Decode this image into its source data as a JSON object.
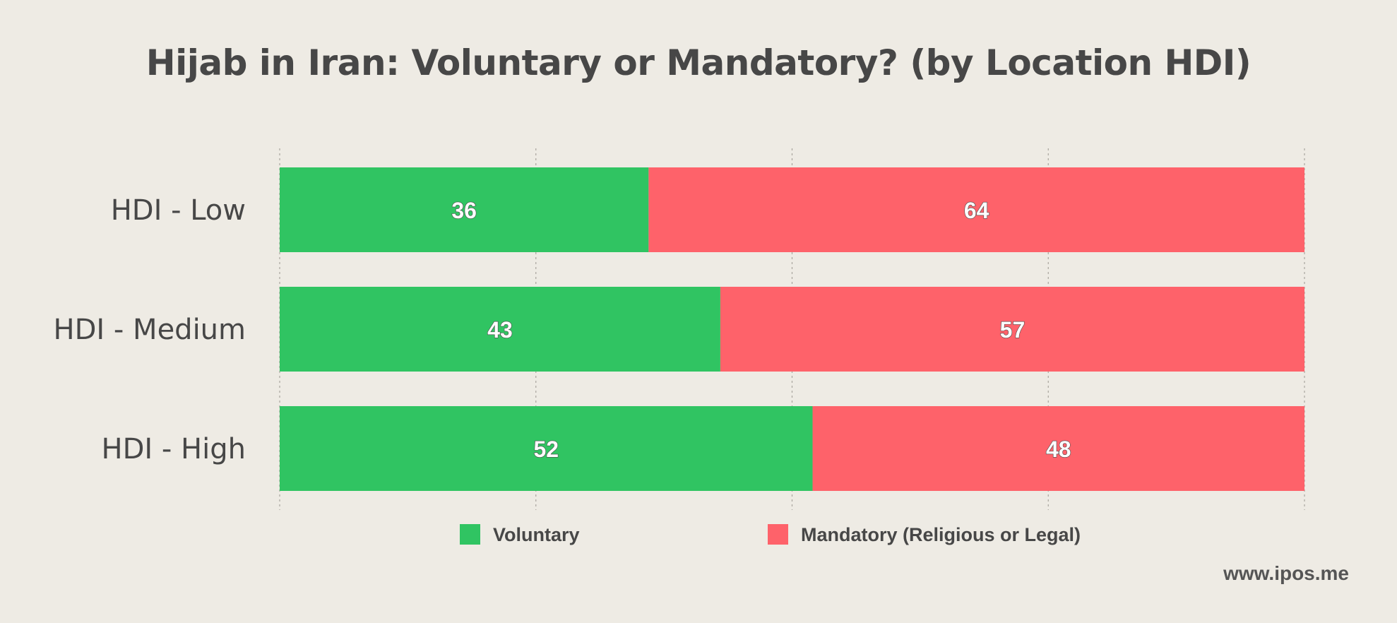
{
  "chart_data": {
    "type": "bar",
    "orientation": "horizontal",
    "stacked": true,
    "title": "Hijab in Iran: Voluntary or Mandatory? (by Location HDI)",
    "categories": [
      "HDI - Low",
      "HDI - Medium",
      "HDI - High"
    ],
    "series": [
      {
        "name": "Voluntary",
        "color": "#30c462",
        "values": [
          36,
          43,
          52
        ]
      },
      {
        "name": "Mandatory (Religious or Legal)",
        "color": "#fe626a",
        "values": [
          64,
          57,
          48
        ]
      }
    ],
    "xlim": [
      0,
      100
    ],
    "grid": true,
    "legend_position": "bottom"
  },
  "watermark": "www.ipos.me"
}
